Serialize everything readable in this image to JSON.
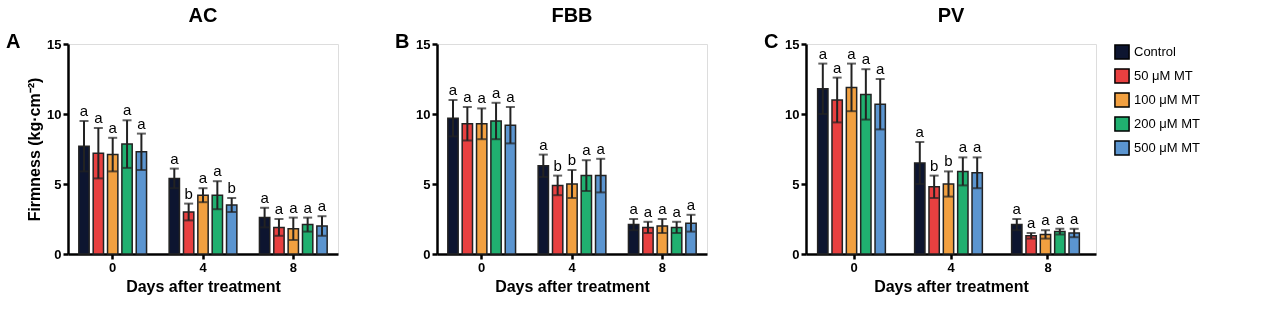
{
  "chart_data": [
    {
      "type": "bar",
      "title": "AC",
      "ylabel": "Firmness (kg·cm⁻²)",
      "xlabel": "Days after treatment",
      "annotations": [
        "A"
      ],
      "categories": [
        "0",
        "4",
        "8"
      ],
      "ylim": [
        0,
        15
      ],
      "yticks": [
        0,
        5,
        10,
        15
      ],
      "grid": false,
      "legend": false,
      "series": [
        {
          "color": "#0d1530",
          "values": [
            7.7,
            5.4,
            2.6
          ],
          "errors": [
            1.8,
            0.7,
            0.7
          ],
          "value_labels": [
            "a",
            "a",
            "a"
          ]
        },
        {
          "color": "#e84040",
          "values": [
            7.2,
            3.0,
            1.9
          ],
          "errors": [
            1.8,
            0.6,
            0.6
          ],
          "value_labels": [
            "a",
            "b",
            "a"
          ]
        },
        {
          "color": "#f2a040",
          "values": [
            7.1,
            4.2,
            1.8
          ],
          "errors": [
            1.2,
            0.5,
            0.8
          ],
          "value_labels": [
            "a",
            "a",
            "a"
          ]
        },
        {
          "color": "#20b070",
          "values": [
            7.85,
            4.2,
            2.1
          ],
          "errors": [
            1.7,
            1.0,
            0.5
          ],
          "value_labels": [
            "a",
            "a",
            "a"
          ]
        },
        {
          "color": "#5b95d0",
          "values": [
            7.3,
            3.5,
            2.0
          ],
          "errors": [
            1.3,
            0.5,
            0.7
          ],
          "value_labels": [
            "a",
            "b",
            "a"
          ]
        }
      ]
    },
    {
      "type": "bar",
      "title": "FBB",
      "xlabel": "Days after treatment",
      "annotations": [
        "B"
      ],
      "categories": [
        "0",
        "4",
        "8"
      ],
      "ylim": [
        0,
        15
      ],
      "yticks": [
        0,
        5,
        10,
        15
      ],
      "grid": false,
      "legend": false,
      "series": [
        {
          "color": "#0d1530",
          "values": [
            9.7,
            6.3,
            2.1
          ],
          "errors": [
            1.3,
            0.8,
            0.4
          ],
          "value_labels": [
            "a",
            "a",
            "a"
          ]
        },
        {
          "color": "#e84040",
          "values": [
            9.3,
            4.9,
            1.9
          ],
          "errors": [
            1.2,
            0.7,
            0.4
          ],
          "value_labels": [
            "a",
            "b",
            "a"
          ]
        },
        {
          "color": "#f2a040",
          "values": [
            9.3,
            5.0,
            2.0
          ],
          "errors": [
            1.1,
            1.0,
            0.5
          ],
          "value_labels": [
            "a",
            "b",
            "a"
          ]
        },
        {
          "color": "#20b070",
          "values": [
            9.5,
            5.6,
            1.9
          ],
          "errors": [
            1.3,
            1.1,
            0.4
          ],
          "value_labels": [
            "a",
            "a",
            "a"
          ]
        },
        {
          "color": "#5b95d0",
          "values": [
            9.2,
            5.6,
            2.2
          ],
          "errors": [
            1.3,
            1.2,
            0.6
          ],
          "value_labels": [
            "a",
            "a",
            "a"
          ]
        }
      ]
    },
    {
      "type": "bar",
      "title": "PV",
      "xlabel": "Days after treatment",
      "annotations": [
        "C"
      ],
      "categories": [
        "0",
        "4",
        "8"
      ],
      "ylim": [
        0,
        15
      ],
      "yticks": [
        0,
        5,
        10,
        15
      ],
      "grid": false,
      "legend": "right",
      "series": [
        {
          "name": "Control",
          "color": "#0d1530",
          "values": [
            11.8,
            6.5,
            2.1
          ],
          "errors": [
            1.8,
            1.5,
            0.4
          ],
          "value_labels": [
            "a",
            "a",
            "a"
          ]
        },
        {
          "name": "50 μM MT",
          "color": "#e84040",
          "values": [
            11.0,
            4.8,
            1.3
          ],
          "errors": [
            1.6,
            0.8,
            0.2
          ],
          "value_labels": [
            "a",
            "b",
            "a"
          ]
        },
        {
          "name": "100 μM MT",
          "color": "#f2a040",
          "values": [
            11.9,
            5.0,
            1.4
          ],
          "errors": [
            1.7,
            0.9,
            0.3
          ],
          "value_labels": [
            "a",
            "b",
            "a"
          ]
        },
        {
          "name": "200 μM MT",
          "color": "#20b070",
          "values": [
            11.4,
            5.9,
            1.6
          ],
          "errors": [
            1.8,
            1.0,
            0.2
          ],
          "value_labels": [
            "a",
            "a",
            "a"
          ]
        },
        {
          "name": "500 μM MT",
          "color": "#5b95d0",
          "values": [
            10.7,
            5.8,
            1.5
          ],
          "errors": [
            1.8,
            1.1,
            0.3
          ],
          "value_labels": [
            "a",
            "a",
            "a"
          ]
        }
      ]
    }
  ]
}
